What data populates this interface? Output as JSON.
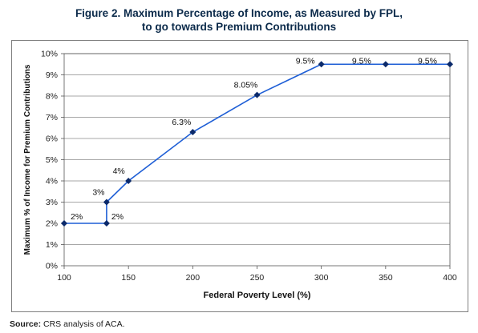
{
  "title_line1": "Figure 2. Maximum Percentage of Income, as Measured by FPL,",
  "title_line2": "to go towards Premium Contributions",
  "source_label": "Source:",
  "source_text": "CRS analysis of ACA.",
  "chart_data": {
    "type": "line",
    "xlabel": "Federal Poverty Level (%)",
    "ylabel": "Maximum % of Income for Premium Contributions",
    "xlim": [
      100,
      400
    ],
    "ylim": [
      0,
      10
    ],
    "x_ticks": [
      "100",
      "150",
      "200",
      "250",
      "300",
      "350",
      "400"
    ],
    "y_ticks": [
      "0%",
      "1%",
      "2%",
      "3%",
      "4%",
      "5%",
      "6%",
      "7%",
      "8%",
      "9%",
      "10%"
    ],
    "grid": true,
    "series": [
      {
        "x": [
          100,
          133,
          133,
          150,
          200,
          250,
          300,
          350,
          400
        ],
        "y": [
          2,
          2,
          3,
          4,
          6.3,
          8.05,
          9.5,
          9.5,
          9.5
        ],
        "labels": [
          "2%",
          "2%",
          "3%",
          "4%",
          "6.3%",
          "8.05%",
          "9.5%",
          "9.5%",
          "9.5%"
        ]
      }
    ],
    "line_color": "#1f5fd6",
    "marker_color": "#0b2a6b"
  }
}
